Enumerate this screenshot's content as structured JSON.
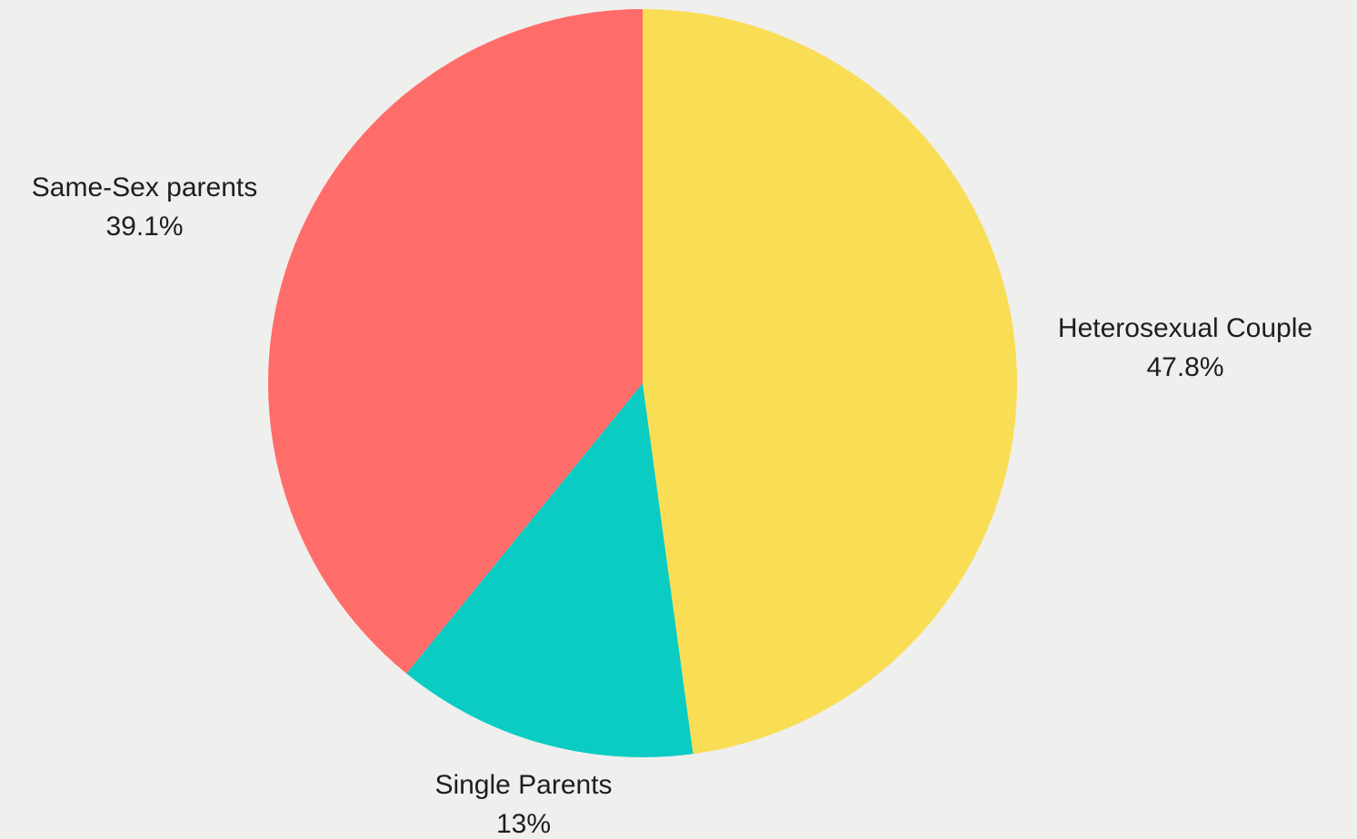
{
  "chart_data": {
    "type": "pie",
    "categories": [
      "Heterosexual Couple",
      "Single Parents",
      "Same-Sex parents"
    ],
    "values": [
      47.8,
      13,
      39.1
    ],
    "value_labels": [
      "47.8%",
      "13%",
      "39.1%"
    ],
    "colors": [
      "#f9dd55",
      "#0accc3",
      "#ff6d6b"
    ]
  }
}
